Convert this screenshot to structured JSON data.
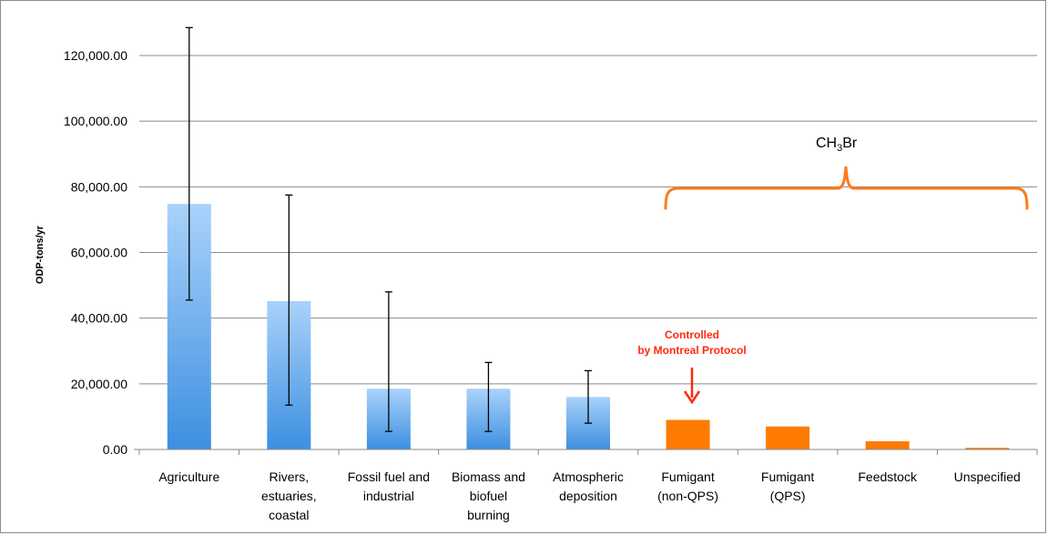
{
  "chart_data": {
    "type": "bar",
    "ylabel": "ODP-tons/yr",
    "ylim": [
      0,
      130000
    ],
    "y_ticks": [
      0,
      20000,
      40000,
      60000,
      80000,
      100000,
      120000
    ],
    "y_tick_labels": [
      "0.00",
      "20,000.00",
      "40,000.00",
      "60,000.00",
      "80,000.00",
      "100,000.00",
      "120,000.00"
    ],
    "grid": true,
    "categories": [
      [
        "Agriculture"
      ],
      [
        "Rivers,",
        "estuaries,",
        "coastal"
      ],
      [
        "Fossil fuel and",
        "industrial"
      ],
      [
        "Biomass and",
        "biofuel",
        "burning"
      ],
      [
        "Atmospheric",
        "deposition"
      ],
      [
        "Fumigant",
        "(non-QPS)"
      ],
      [
        "Fumigant",
        "(QPS)"
      ],
      [
        "Feedstock"
      ],
      [
        "Unspecified"
      ]
    ],
    "values": [
      74800,
      45200,
      18500,
      18500,
      16000,
      9000,
      7000,
      2500,
      500
    ],
    "error_low": [
      45500,
      13500,
      5500,
      5500,
      8000,
      null,
      null,
      null,
      null
    ],
    "error_high": [
      128500,
      77500,
      48000,
      26500,
      24000,
      null,
      null,
      null,
      null
    ],
    "colors": [
      "#5aa3e8",
      "#5aa3e8",
      "#5aa3e8",
      "#5aa3e8",
      "#5aa3e8",
      "#ff7a00",
      "#ff7a00",
      "#ff7a00",
      "#ff7a00"
    ],
    "annotations": {
      "controlled_line1": "Controlled",
      "controlled_line2": "by Montreal Protocol",
      "controlled_color": "#ff2a0a",
      "group_label_main": "CH",
      "group_label_sub": "3",
      "group_label_tail": "Br",
      "bracket_color": "#ff7a1a"
    }
  }
}
